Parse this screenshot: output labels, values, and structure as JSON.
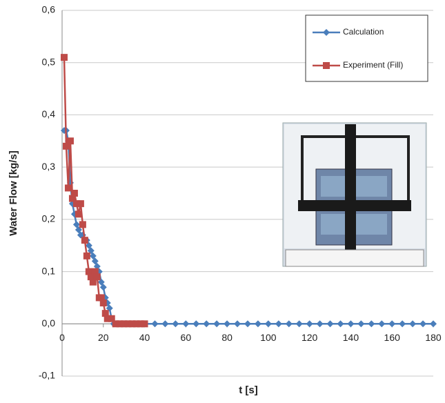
{
  "chart_data": {
    "type": "line",
    "y_label": "Water Flow [kg/s]",
    "x_label": "t [s]",
    "xlim": [
      0,
      180
    ],
    "xticks": [
      0,
      20,
      40,
      60,
      80,
      100,
      120,
      140,
      160,
      180
    ],
    "ylim": [
      -0.1,
      0.6
    ],
    "yticks": [
      {
        "value": -0.1,
        "label": "-0,1"
      },
      {
        "value": 0,
        "label": "0,0"
      },
      {
        "value": 0.1,
        "label": "0,1"
      },
      {
        "value": 0.2,
        "label": "0,2"
      },
      {
        "value": 0.3,
        "label": "0,3"
      },
      {
        "value": 0.4,
        "label": "0,4"
      },
      {
        "value": 0.5,
        "label": "0,5"
      },
      {
        "value": 0.6,
        "label": "0,6"
      }
    ],
    "grid": true,
    "legend": "upper right",
    "series": [
      {
        "name": "Calculation",
        "color": "#4a7ebb",
        "marker": "diamond",
        "x": [
          1,
          2,
          3,
          4,
          5,
          6,
          7,
          8,
          9,
          10,
          11,
          12,
          13,
          14,
          15,
          16,
          17,
          18,
          19,
          20,
          21,
          22,
          23,
          24,
          25,
          30,
          35,
          40,
          45,
          50,
          55,
          60,
          65,
          70,
          75,
          80,
          85,
          90,
          95,
          100,
          105,
          110,
          115,
          120,
          125,
          130,
          135,
          140,
          145,
          150,
          155,
          160,
          165,
          170,
          175,
          180
        ],
        "values": [
          0.37,
          0.37,
          0.35,
          0.27,
          0.23,
          0.21,
          0.19,
          0.18,
          0.17,
          0.17,
          0.16,
          0.16,
          0.15,
          0.14,
          0.13,
          0.12,
          0.11,
          0.1,
          0.08,
          0.07,
          0.05,
          0.04,
          0.03,
          0.01,
          0,
          0,
          0,
          0,
          0,
          0,
          0,
          0,
          0,
          0,
          0,
          0,
          0,
          0,
          0,
          0,
          0,
          0,
          0,
          0,
          0,
          0,
          0,
          0,
          0,
          0,
          0,
          0,
          0,
          0,
          0,
          0
        ]
      },
      {
        "name": "Experiment (Fill)",
        "color": "#be4b48",
        "marker": "square",
        "x": [
          1,
          2,
          3,
          4,
          5,
          6,
          7,
          8,
          9,
          10,
          11,
          12,
          13,
          14,
          15,
          16,
          17,
          18,
          19,
          20,
          21,
          22,
          24,
          26,
          28,
          30,
          32,
          34,
          36,
          38,
          40
        ],
        "values": [
          0.51,
          0.34,
          0.26,
          0.35,
          0.24,
          0.25,
          0.23,
          0.21,
          0.23,
          0.19,
          0.16,
          0.13,
          0.1,
          0.09,
          0.08,
          0.1,
          0.09,
          0.05,
          0.05,
          0.04,
          0.02,
          0.01,
          0.01,
          0,
          0,
          0,
          0,
          0,
          0,
          0,
          0
        ]
      }
    ]
  }
}
